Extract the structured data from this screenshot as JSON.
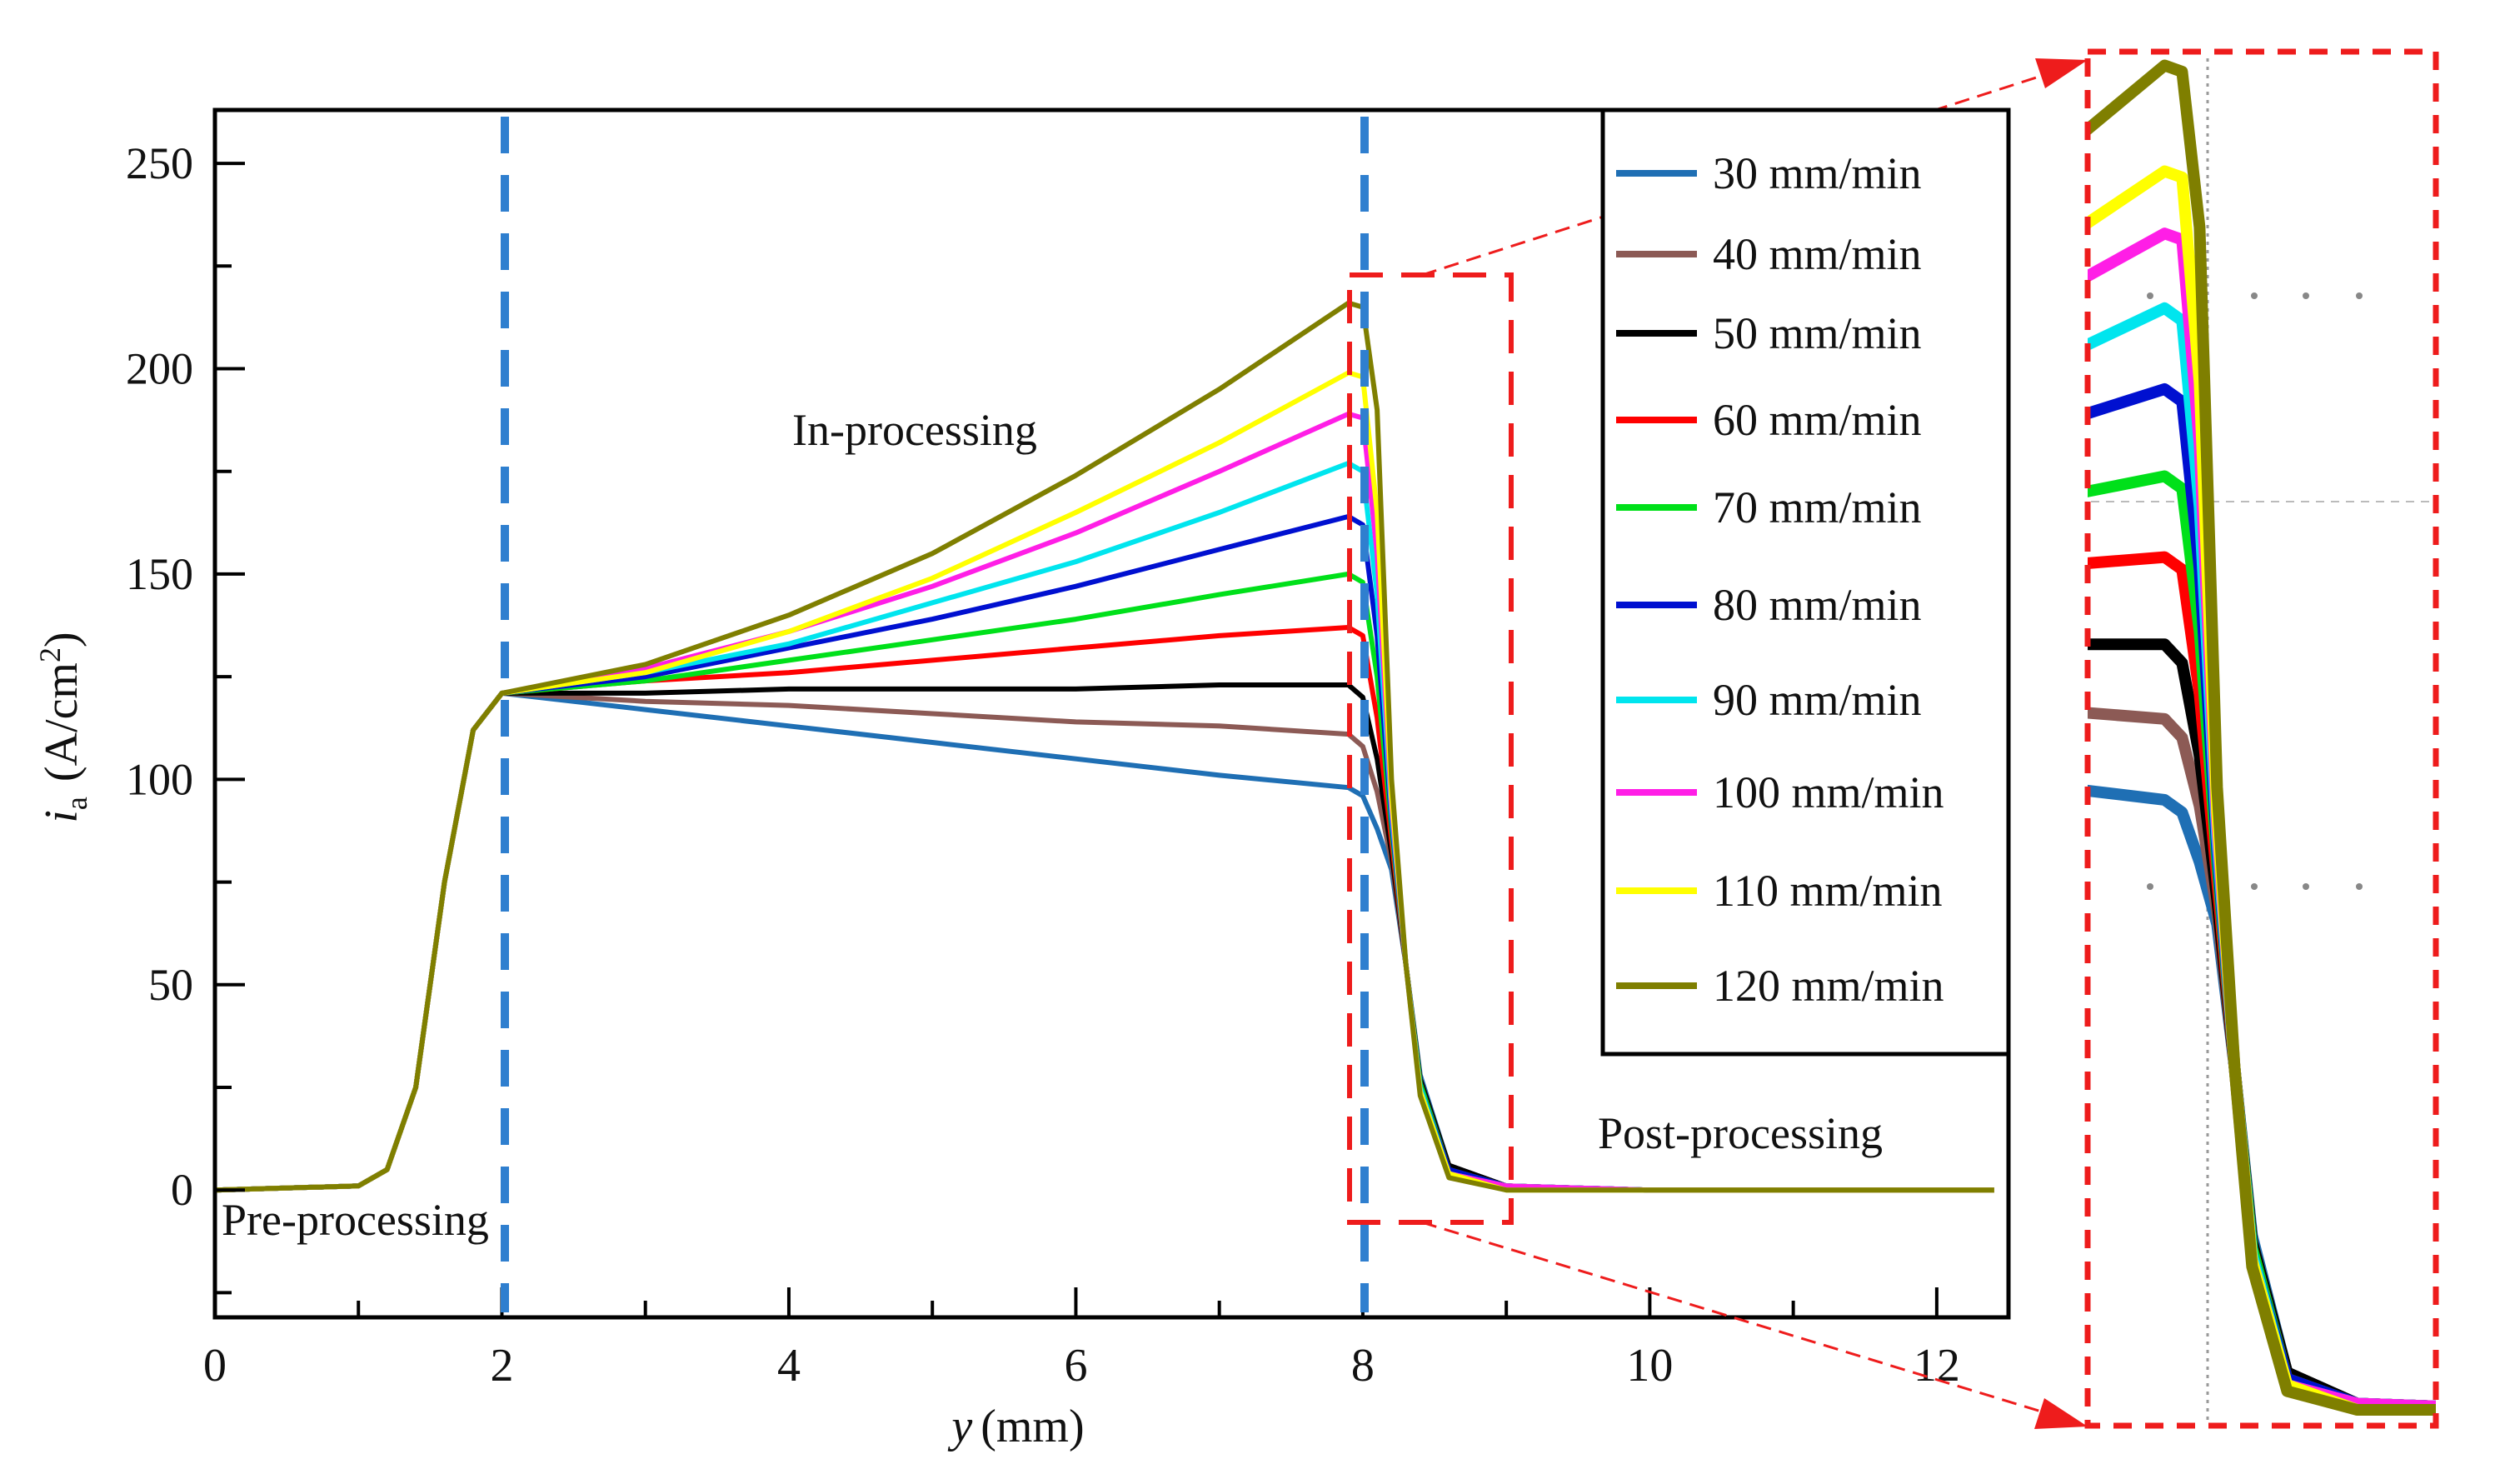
{
  "chart_data": {
    "type": "line",
    "xlabel": "y (mm)",
    "xlabel_italic": "y",
    "xlabel_unit": "(mm)",
    "ylabel_symbol": "i",
    "ylabel_sub": "a",
    "ylabel_unit": "(A/cm",
    "ylabel_sup": "2",
    "ylabel_close": ")",
    "xlim": [
      0,
      12.5
    ],
    "ylim": [
      -31,
      263
    ],
    "xticks": [
      0,
      2,
      4,
      6,
      8,
      10,
      12
    ],
    "yticks": [
      0,
      50,
      100,
      150,
      200,
      250
    ],
    "legend_position": "top-right",
    "annotations": {
      "pre": "Pre-processing",
      "in": "In-processing",
      "post": "Post-processing"
    },
    "phase_boundaries": [
      2,
      8
    ],
    "zoom_region": {
      "x": [
        7.9,
        9.0
      ],
      "y": [
        -8,
        222
      ]
    },
    "x": [
      0,
      1,
      1.2,
      1.4,
      1.6,
      1.8,
      2,
      3,
      4,
      5,
      6,
      7,
      7.9,
      8.0,
      8.1,
      8.2,
      8.3,
      8.4,
      8.6,
      9,
      10,
      12.4
    ],
    "series": [
      {
        "name": "30 mm/min",
        "color": "#1f6fb4",
        "values": [
          0,
          1,
          5,
          25,
          75,
          112,
          121,
          117,
          113,
          109,
          105,
          101,
          98,
          96,
          88,
          78,
          55,
          28,
          6,
          1,
          0,
          0
        ]
      },
      {
        "name": "40 mm/min",
        "color": "#8c5a55",
        "values": [
          0,
          1,
          5,
          25,
          75,
          112,
          121,
          119,
          118,
          116,
          114,
          113,
          111,
          108,
          97,
          80,
          55,
          27,
          6,
          1,
          0,
          0
        ]
      },
      {
        "name": "50 mm/min",
        "color": "#000000",
        "values": [
          0,
          1,
          5,
          25,
          75,
          112,
          121,
          121,
          122,
          122,
          122,
          123,
          123,
          120,
          105,
          82,
          55,
          27,
          6,
          1,
          0,
          0
        ]
      },
      {
        "name": "60 mm/min",
        "color": "#ff0000",
        "values": [
          0,
          1,
          5,
          25,
          75,
          112,
          121,
          124,
          126,
          129,
          132,
          135,
          137,
          135,
          115,
          85,
          55,
          26,
          5,
          1,
          0,
          0
        ]
      },
      {
        "name": "70 mm/min",
        "color": "#00e01a",
        "values": [
          0,
          1,
          5,
          25,
          75,
          112,
          121,
          124,
          129,
          134,
          139,
          145,
          150,
          148,
          125,
          88,
          55,
          26,
          5,
          1,
          0,
          0
        ]
      },
      {
        "name": "80 mm/min",
        "color": "#0010d0",
        "values": [
          0,
          1,
          5,
          25,
          75,
          112,
          121,
          125,
          132,
          139,
          147,
          156,
          164,
          162,
          135,
          90,
          55,
          25,
          5,
          1,
          0,
          0
        ]
      },
      {
        "name": "90 mm/min",
        "color": "#00e5ee",
        "values": [
          0,
          1,
          5,
          25,
          75,
          112,
          121,
          126,
          133,
          143,
          153,
          165,
          177,
          175,
          145,
          92,
          55,
          25,
          4,
          1,
          0,
          0
        ]
      },
      {
        "name": "100 mm/min",
        "color": "#ff1ee6",
        "values": [
          0,
          1,
          5,
          25,
          75,
          112,
          121,
          127,
          136,
          147,
          160,
          175,
          189,
          188,
          155,
          94,
          55,
          24,
          4,
          1,
          0,
          0
        ]
      },
      {
        "name": "110 mm/min",
        "color": "#ffff00",
        "values": [
          0,
          1,
          5,
          25,
          75,
          112,
          121,
          126,
          136,
          149,
          165,
          182,
          199,
          198,
          165,
          96,
          55,
          24,
          4,
          0,
          0,
          0
        ]
      },
      {
        "name": "120 mm/min",
        "color": "#7f7f00",
        "values": [
          0,
          1,
          5,
          25,
          75,
          112,
          121,
          128,
          140,
          155,
          174,
          195,
          216,
          215,
          190,
          100,
          55,
          23,
          3,
          0,
          0,
          0
        ]
      }
    ]
  }
}
